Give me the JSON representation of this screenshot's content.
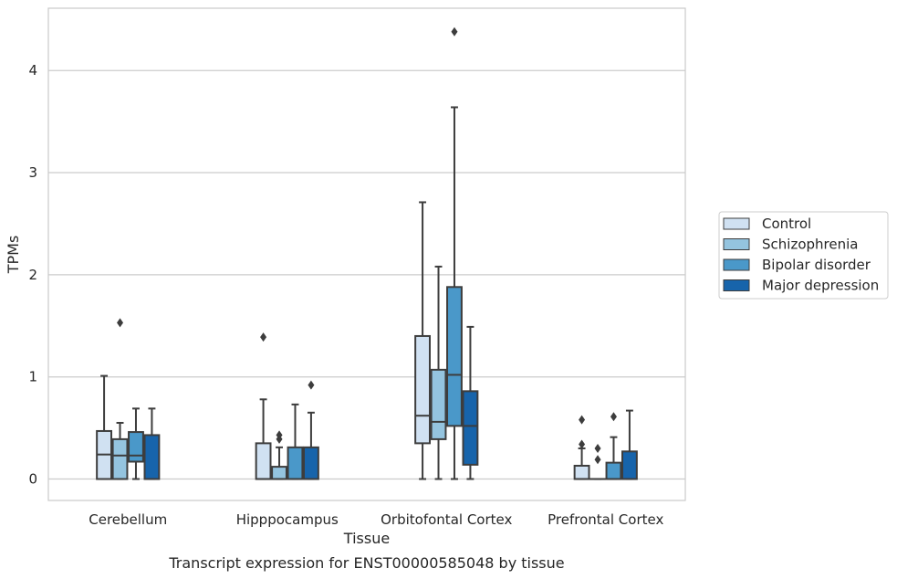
{
  "chart_data": {
    "type": "box",
    "xlabel": "Tissue",
    "ylabel": "TPMs",
    "caption": "Transcript expression for ENST00000585048 by tissue",
    "ylim": [
      -0.21,
      4.61
    ],
    "yticks": [
      "0",
      "1",
      "2",
      "3",
      "4"
    ],
    "grid": "horizontal",
    "legend_position": "right",
    "categories": [
      "Cerebellum",
      "Hipppocampus",
      "Orbitofontal Cortex",
      "Prefrontal Cortex"
    ],
    "series": [
      {
        "name": "Control",
        "color": "#d0e1f2",
        "boxes": [
          {
            "whislo": 0.0,
            "q1": 0.0,
            "med": 0.24,
            "q3": 0.47,
            "whishi": 1.01,
            "fliers": []
          },
          {
            "whislo": 0.0,
            "q1": 0.0,
            "med": 0.0,
            "q3": 0.35,
            "whishi": 0.78,
            "fliers": [
              1.39
            ]
          },
          {
            "whislo": 0.0,
            "q1": 0.35,
            "med": 0.62,
            "q3": 1.4,
            "whishi": 2.71,
            "fliers": []
          },
          {
            "whislo": 0.0,
            "q1": 0.0,
            "med": 0.0,
            "q3": 0.13,
            "whishi": 0.3,
            "fliers": [
              0.34,
              0.58
            ]
          }
        ]
      },
      {
        "name": "Schizophrenia",
        "color": "#94c4df",
        "boxes": [
          {
            "whislo": 0.0,
            "q1": 0.0,
            "med": 0.23,
            "q3": 0.39,
            "whishi": 0.55,
            "fliers": [
              1.53
            ]
          },
          {
            "whislo": 0.0,
            "q1": 0.0,
            "med": 0.0,
            "q3": 0.12,
            "whishi": 0.31,
            "fliers": [
              0.39,
              0.43
            ]
          },
          {
            "whislo": 0.0,
            "q1": 0.39,
            "med": 0.56,
            "q3": 1.07,
            "whishi": 2.08,
            "fliers": []
          },
          {
            "whislo": 0.0,
            "q1": 0.0,
            "med": 0.0,
            "q3": 0.0,
            "whishi": 0.0,
            "fliers": [
              0.19,
              0.3
            ]
          }
        ]
      },
      {
        "name": "Bipolar disorder",
        "color": "#4a98c9",
        "boxes": [
          {
            "whislo": 0.0,
            "q1": 0.17,
            "med": 0.23,
            "q3": 0.46,
            "whishi": 0.69,
            "fliers": []
          },
          {
            "whislo": 0.0,
            "q1": 0.0,
            "med": 0.0,
            "q3": 0.31,
            "whishi": 0.73,
            "fliers": []
          },
          {
            "whislo": 0.0,
            "q1": 0.52,
            "med": 1.02,
            "q3": 1.88,
            "whishi": 3.64,
            "fliers": [
              4.38
            ]
          },
          {
            "whislo": 0.0,
            "q1": 0.0,
            "med": 0.0,
            "q3": 0.16,
            "whishi": 0.41,
            "fliers": [
              0.61
            ]
          }
        ]
      },
      {
        "name": "Major depression",
        "color": "#1764ab",
        "boxes": [
          {
            "whislo": 0.0,
            "q1": 0.0,
            "med": 0.0,
            "q3": 0.43,
            "whishi": 0.69,
            "fliers": []
          },
          {
            "whislo": 0.0,
            "q1": 0.0,
            "med": 0.0,
            "q3": 0.31,
            "whishi": 0.65,
            "fliers": [
              0.92
            ]
          },
          {
            "whislo": 0.0,
            "q1": 0.14,
            "med": 0.52,
            "q3": 0.86,
            "whishi": 1.49,
            "fliers": []
          },
          {
            "whislo": 0.0,
            "q1": 0.0,
            "med": 0.0,
            "q3": 0.27,
            "whishi": 0.67,
            "fliers": []
          }
        ]
      }
    ]
  }
}
